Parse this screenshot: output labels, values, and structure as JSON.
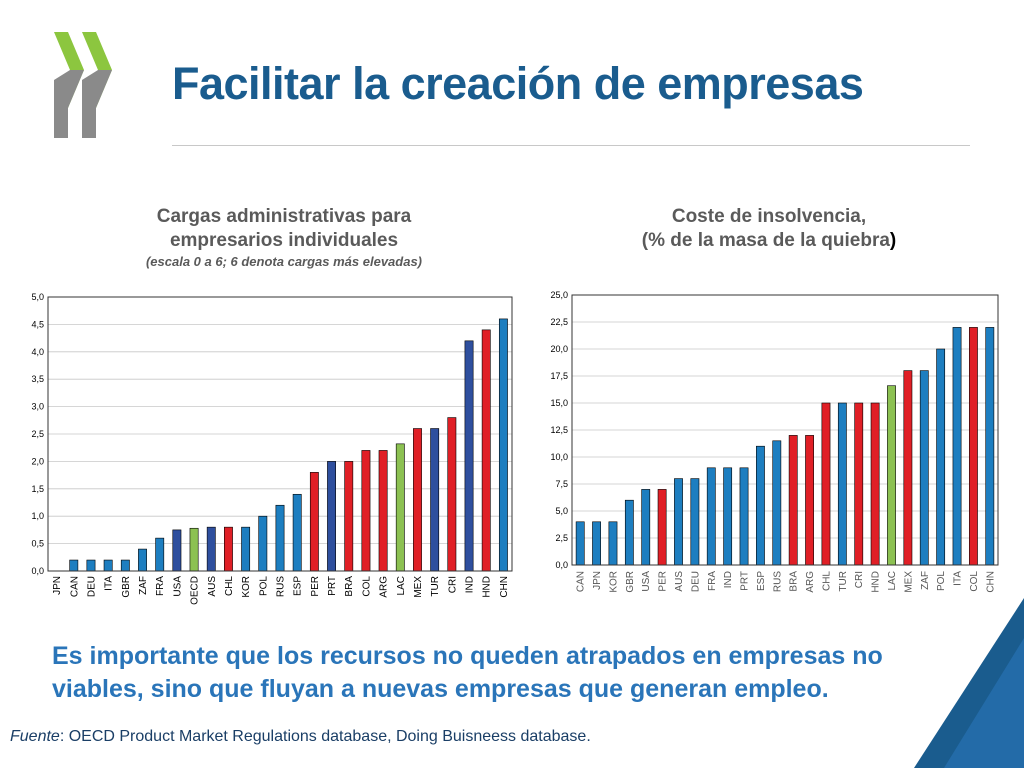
{
  "header": {
    "title": "Facilitar la creación de empresas"
  },
  "colors": {
    "blue_dark": "#2e4f9e",
    "blue_light": "#1d7ec0",
    "red": "#e01f26",
    "green": "#8cc152",
    "title": "#1a5c8e",
    "message": "#2a75b9"
  },
  "chart_data": [
    {
      "type": "bar",
      "title_line1": "Cargas administrativas para",
      "title_line2": "empresarios individuales",
      "subtitle": "(escala 0 a 6; 6 denota cargas más elevadas)",
      "ylim": [
        0,
        5
      ],
      "ytick_step": 0.5,
      "categories": [
        "JPN",
        "CAN",
        "DEU",
        "ITA",
        "GBR",
        "ZAF",
        "FRA",
        "USA",
        "OECD",
        "AUS",
        "CHL",
        "KOR",
        "POL",
        "RUS",
        "ESP",
        "PER",
        "PRT",
        "BRA",
        "COL",
        "ARG",
        "LAC",
        "MEX",
        "TUR",
        "CRI",
        "IND",
        "HND",
        "CHN"
      ],
      "values": [
        0,
        0.2,
        0.2,
        0.2,
        0.2,
        0.4,
        0.6,
        0.75,
        0.78,
        0.8,
        0.8,
        0.8,
        1.0,
        1.2,
        1.4,
        1.8,
        2.0,
        2.0,
        2.2,
        2.2,
        2.32,
        2.6,
        2.6,
        2.8,
        4.2,
        4.4,
        4.6
      ],
      "colors": [
        "blue_light",
        "blue_light",
        "blue_light",
        "blue_light",
        "blue_light",
        "blue_light",
        "blue_light",
        "blue_dark",
        "green",
        "blue_dark",
        "red",
        "blue_light",
        "blue_light",
        "blue_light",
        "blue_light",
        "red",
        "blue_dark",
        "red",
        "red",
        "red",
        "green",
        "red",
        "blue_dark",
        "red",
        "blue_dark",
        "red",
        "blue_light"
      ]
    },
    {
      "type": "bar",
      "title_line1": "Coste de insolvencia,",
      "title_line2": "(% de la masa de la quiebra",
      "title_close": ")",
      "ylim": [
        0,
        25
      ],
      "ytick_step": 2.5,
      "categories": [
        "CAN",
        "JPN",
        "KOR",
        "GBR",
        "USA",
        "PER",
        "AUS",
        "DEU",
        "FRA",
        "IND",
        "PRT",
        "ESP",
        "RUS",
        "BRA",
        "ARG",
        "CHL",
        "TUR",
        "CRI",
        "HND",
        "LAC",
        "MEX",
        "ZAF",
        "POL",
        "ITA",
        "COL",
        "CHN"
      ],
      "values": [
        4,
        4,
        4,
        6,
        7,
        7,
        8,
        8,
        9,
        9,
        9,
        11,
        11.5,
        12,
        12,
        15,
        15,
        15,
        15,
        16.6,
        18,
        18,
        20,
        22,
        22,
        22
      ],
      "colors": [
        "blue_light",
        "blue_light",
        "blue_light",
        "blue_light",
        "blue_light",
        "red",
        "blue_light",
        "blue_light",
        "blue_light",
        "blue_light",
        "blue_light",
        "blue_light",
        "blue_light",
        "red",
        "red",
        "red",
        "blue_light",
        "red",
        "red",
        "green",
        "red",
        "blue_light",
        "blue_light",
        "blue_light",
        "red",
        "blue_light"
      ]
    }
  ],
  "message": "Es importante que los recursos no queden atrapados en empresas no viables, sino que fluyan a nuevas empresas que generan empleo.",
  "source": {
    "label": "Fuente",
    "text": ": OECD Product Market Regulations database, Doing Buisneess database."
  }
}
